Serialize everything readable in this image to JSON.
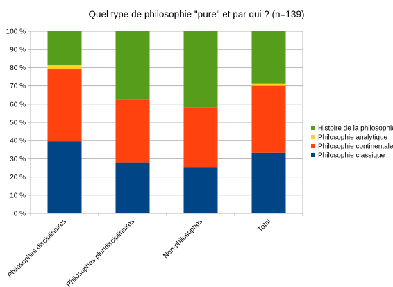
{
  "chart_data": {
    "type": "bar",
    "stacked": true,
    "title": "Quel type de philosophie \"pure\" et par qui ? (n=139)",
    "xlabel": "",
    "ylabel": "",
    "ylim": [
      0,
      100
    ],
    "y_tick_labels": [
      "0 %",
      "10 %",
      "20 %",
      "30 %",
      "40 %",
      "50 %",
      "60 %",
      "70 %",
      "80 %",
      "90 %",
      "100 %"
    ],
    "categories": [
      "Philosophes disciplinaires",
      "Philosophes pluridisciplinaires",
      "Non-philosophes",
      "Total"
    ],
    "series": [
      {
        "name": "Philosophie classique",
        "color": "#004586",
        "values": [
          39.5,
          28,
          25,
          33.3
        ]
      },
      {
        "name": "Philosophie continentale",
        "color": "#ff420e",
        "values": [
          39.5,
          34.3,
          33.3,
          36.7
        ]
      },
      {
        "name": "Philosophie analytique",
        "color": "#ffd320",
        "values": [
          2.6,
          0,
          0,
          1.1
        ]
      },
      {
        "name": "Histoire de la philosophie",
        "color": "#579d1c",
        "values": [
          18.4,
          37.7,
          41.7,
          28.9
        ]
      }
    ],
    "legend_position": "right",
    "grid": true
  }
}
